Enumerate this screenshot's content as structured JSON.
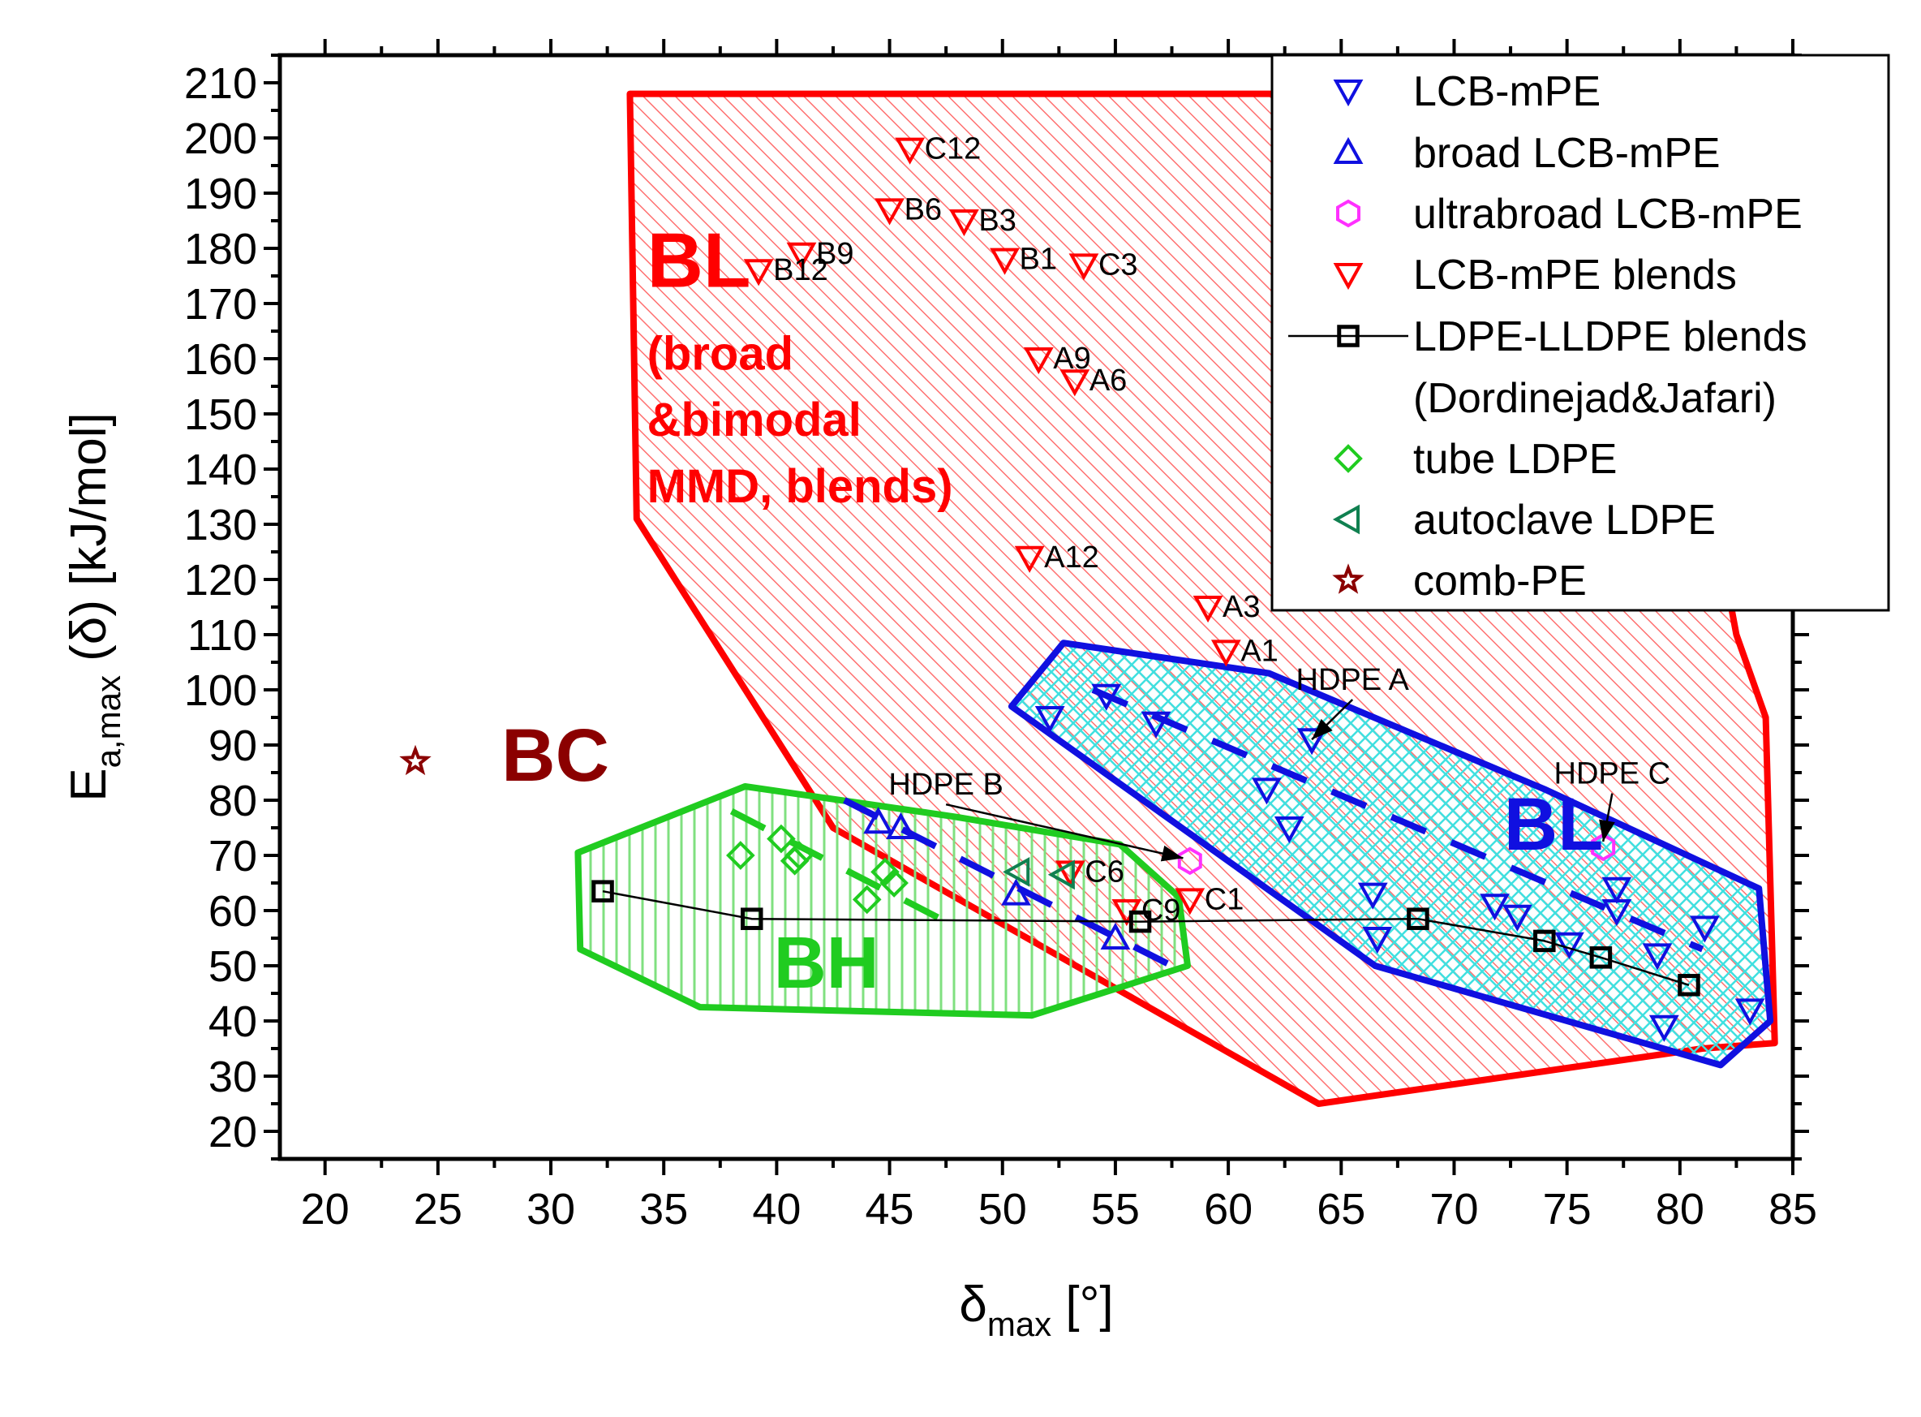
{
  "chart_data": {
    "type": "scatter",
    "xlabel_main": "δ",
    "xlabel_sub": "max",
    "xlabel_unit": " [°]",
    "ylabel_main": "E",
    "ylabel_sub": "a,max",
    "ylabel_unit": " (δ) [kJ/mol]",
    "xlim": [
      18,
      85
    ],
    "ylim": [
      15,
      215
    ],
    "xticks": [
      20,
      25,
      30,
      35,
      40,
      45,
      50,
      55,
      60,
      65,
      70,
      75,
      80,
      85
    ],
    "yticks": [
      20,
      30,
      40,
      50,
      60,
      70,
      80,
      90,
      100,
      110,
      120,
      130,
      140,
      150,
      160,
      170,
      180,
      190,
      200,
      210
    ],
    "colors": {
      "blue": "#1010e0",
      "red": "#ff0000",
      "green": "#20cc20",
      "darkgreen": "#108050",
      "magenta": "#ff30ff",
      "darkred": "#8b0000",
      "black": "#000000"
    },
    "regions": [
      {
        "label_lines": [
          "BL",
          "(broad",
          "&bimodal",
          "MMD, blends)"
        ],
        "color": "#ff0000",
        "polygon": [
          [
            33.5,
            208
          ],
          [
            62,
            208
          ],
          [
            80,
            165
          ],
          [
            82.5,
            110
          ],
          [
            83.8,
            95
          ],
          [
            84.2,
            36
          ],
          [
            81,
            35
          ],
          [
            64,
            25
          ],
          [
            42.5,
            75
          ],
          [
            33.8,
            131
          ]
        ]
      },
      {
        "label_lines": [
          "BL"
        ],
        "color": "#1010e0",
        "polygon": [
          [
            52.7,
            108.5
          ],
          [
            61.8,
            103
          ],
          [
            74,
            82
          ],
          [
            83.5,
            64
          ],
          [
            84,
            40
          ],
          [
            81.8,
            32
          ],
          [
            66.5,
            50
          ],
          [
            50.4,
            97
          ]
        ]
      },
      {
        "label_lines": [
          "BH"
        ],
        "color": "#20cc20",
        "polygon": [
          [
            38.6,
            82.5
          ],
          [
            47.9,
            77
          ],
          [
            55.2,
            72
          ],
          [
            57.8,
            62.5
          ],
          [
            58.2,
            50
          ],
          [
            51.3,
            41
          ],
          [
            36.6,
            42.5
          ],
          [
            31.3,
            53
          ],
          [
            31.2,
            70.5
          ]
        ]
      },
      {
        "label_lines": [
          "BC"
        ],
        "color": "#8b0000",
        "polygon": []
      }
    ],
    "series": [
      {
        "name": "LCB-mPE",
        "marker": "triangle-down",
        "color": "#1010e0",
        "points": [
          [
            52.1,
            95
          ],
          [
            54.6,
            99
          ],
          [
            56.8,
            94
          ],
          [
            61.7,
            82
          ],
          [
            62.7,
            75
          ],
          [
            63.7,
            91
          ],
          [
            66.4,
            63
          ],
          [
            66.6,
            55
          ],
          [
            71.8,
            61
          ],
          [
            72.8,
            59
          ],
          [
            75.1,
            54
          ],
          [
            77.2,
            64
          ],
          [
            77.2,
            60
          ],
          [
            79,
            52
          ],
          [
            79.3,
            39
          ],
          [
            81.1,
            57
          ],
          [
            83.1,
            42
          ]
        ]
      },
      {
        "name": "broad LCB-mPE",
        "marker": "triangle-up",
        "color": "#1010e0",
        "points": [
          [
            44.5,
            76
          ],
          [
            45.5,
            75
          ],
          [
            50.6,
            63
          ],
          [
            55,
            55
          ]
        ]
      },
      {
        "name": "ultrabroad LCB-mPE",
        "marker": "hexagon",
        "color": "#ff30ff",
        "points": [
          [
            58.3,
            69
          ],
          [
            76.6,
            71.5
          ]
        ]
      },
      {
        "name": "LCB-mPE blends",
        "marker": "triangle-down",
        "color": "#ff0000",
        "points": [
          [
            39.2,
            176
          ],
          [
            41.1,
            179
          ],
          [
            45.0,
            187
          ],
          [
            45.9,
            198
          ],
          [
            48.3,
            185
          ],
          [
            50.1,
            178
          ],
          [
            53.6,
            177
          ],
          [
            51.6,
            160
          ],
          [
            53.2,
            156
          ],
          [
            51.2,
            124
          ],
          [
            59.1,
            115
          ],
          [
            59.9,
            107
          ],
          [
            53.0,
            67
          ],
          [
            55.5,
            60
          ],
          [
            58.3,
            62
          ]
        ]
      },
      {
        "name": "LDPE-LLDPE blends",
        "name_line2": "(Dordinejad&Jafari)",
        "marker": "square",
        "color": "#000000",
        "line": true,
        "points": [
          [
            32.3,
            63.5
          ],
          [
            38.9,
            58.5
          ],
          [
            56.1,
            58
          ],
          [
            68.4,
            58.5
          ],
          [
            74,
            54.5
          ],
          [
            76.5,
            51.5
          ],
          [
            80.4,
            46.5
          ]
        ]
      },
      {
        "name": "tube LDPE",
        "marker": "diamond",
        "color": "#20cc20",
        "points": [
          [
            38.4,
            70
          ],
          [
            40.2,
            73
          ],
          [
            40.8,
            69
          ],
          [
            41.0,
            70
          ],
          [
            44.0,
            62
          ],
          [
            44.8,
            67
          ],
          [
            45.2,
            65
          ]
        ]
      },
      {
        "name": "autoclave LDPE",
        "marker": "triangle-left",
        "color": "#108050",
        "points": [
          [
            50.7,
            67
          ],
          [
            52.7,
            66.5
          ]
        ]
      },
      {
        "name": "comb-PE",
        "marker": "star",
        "color": "#8b0000",
        "points": [
          [
            24.0,
            87
          ]
        ]
      }
    ],
    "point_labels": [
      {
        "text": "C12",
        "x": 45.9,
        "y": 198
      },
      {
        "text": "B6",
        "x": 45.0,
        "y": 187
      },
      {
        "text": "B3",
        "x": 48.3,
        "y": 185
      },
      {
        "text": "B9",
        "x": 41.1,
        "y": 179
      },
      {
        "text": "B12",
        "x": 39.2,
        "y": 176
      },
      {
        "text": "B1",
        "x": 50.1,
        "y": 178
      },
      {
        "text": "C3",
        "x": 53.6,
        "y": 177
      },
      {
        "text": "A9",
        "x": 51.6,
        "y": 160
      },
      {
        "text": "A6",
        "x": 53.2,
        "y": 156
      },
      {
        "text": "A12",
        "x": 51.2,
        "y": 124
      },
      {
        "text": "A3",
        "x": 59.1,
        "y": 115
      },
      {
        "text": "A1",
        "x": 59.9,
        "y": 107
      },
      {
        "text": "C6",
        "x": 53.0,
        "y": 67
      },
      {
        "text": "C9",
        "x": 55.5,
        "y": 60
      },
      {
        "text": "C1",
        "x": 58.3,
        "y": 62
      }
    ],
    "annotations": [
      {
        "text": "HDPE A",
        "tx": 65.5,
        "ty": 100,
        "ax": 63.7,
        "ay": 91
      },
      {
        "text": "HDPE B",
        "tx": 47.5,
        "ty": 81,
        "ax": 58.0,
        "ay": 69.5
      },
      {
        "text": "HDPE C",
        "tx": 77.0,
        "ty": 83,
        "ax": 76.6,
        "ay": 72.5
      }
    ],
    "trend_lines": [
      {
        "color": "#1010e0",
        "points": [
          [
            54.0,
            100
          ],
          [
            81.0,
            53
          ]
        ]
      },
      {
        "color": "#1010e0",
        "points": [
          [
            43.0,
            80
          ],
          [
            57.5,
            50
          ]
        ]
      },
      {
        "color": "#20cc20",
        "points": [
          [
            38.0,
            78
          ],
          [
            47.5,
            58
          ]
        ]
      }
    ],
    "legend_position": "top-right",
    "grid": false
  }
}
